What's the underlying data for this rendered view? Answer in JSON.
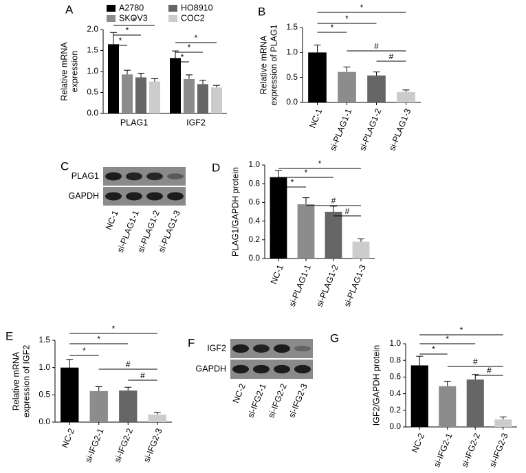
{
  "chart_data": [
    {
      "type": "grouped_bar",
      "panel": "A",
      "ylabel": [
        "Relative mRNA",
        "expression"
      ],
      "categories": [
        "PLAG1",
        "IGF2"
      ],
      "series": [
        {
          "name": "A2780",
          "color": "#000000",
          "values": [
            1.65,
            1.32
          ],
          "errors": [
            0.28,
            0.17
          ]
        },
        {
          "name": "SKOV3",
          "color": "#8c8c8c",
          "values": [
            0.93,
            0.82
          ],
          "errors": [
            0.1,
            0.1
          ]
        },
        {
          "name": "HO8910",
          "color": "#666666",
          "values": [
            0.86,
            0.7
          ],
          "errors": [
            0.1,
            0.09
          ]
        },
        {
          "name": "COC2",
          "color": "#cccccc",
          "values": [
            0.76,
            0.62
          ],
          "errors": [
            0.07,
            0.05
          ]
        }
      ],
      "ylim": [
        0,
        2
      ],
      "yticks": [
        {
          "value": 0,
          "label": "0.0"
        },
        0.5,
        {
          "value": 1,
          "label": "1.0"
        },
        1.5,
        {
          "value": 2,
          "label": "2.0"
        }
      ],
      "annotations": [
        "*",
        "*",
        "*",
        "*",
        "*",
        "*"
      ]
    },
    {
      "type": "bar",
      "panel": "B",
      "ylabel": [
        "Relative mRNA",
        "expression of PLAG1"
      ],
      "categories": [
        "NC-1",
        "si-PLAG1-1",
        "si-PLAG1-2",
        "si-PLAG1-3"
      ],
      "values": [
        1.0,
        0.61,
        0.54,
        0.21
      ],
      "errors": [
        0.15,
        0.1,
        0.07,
        0.04
      ],
      "colors": [
        "#000000",
        "#8c8c8c",
        "#666666",
        "#cccccc"
      ],
      "ylim": [
        0,
        1.5
      ],
      "yticks": [
        {
          "value": 0,
          "label": "0.0"
        },
        0.5,
        {
          "value": 1,
          "label": "1.0"
        },
        1.5
      ],
      "annotations": [
        "*",
        "*",
        "*",
        "#",
        "#"
      ]
    },
    {
      "type": "blot",
      "panel": "C",
      "rows": [
        "PLAG1",
        "GAPDH"
      ],
      "lanes": [
        "NC-1",
        "si-PLAG1-1",
        "si-PLAG1-2",
        "si-PLAG1-3"
      ]
    },
    {
      "type": "bar",
      "panel": "D",
      "ylabel": [
        "PLAG1/GAPDH protein"
      ],
      "categories": [
        "NC-1",
        "si-PLAG1-1",
        "si-PLAG1-2",
        "si-PLAG1-3"
      ],
      "values": [
        0.87,
        0.58,
        0.5,
        0.18
      ],
      "errors": [
        0.07,
        0.07,
        0.06,
        0.03
      ],
      "colors": [
        "#000000",
        "#8c8c8c",
        "#666666",
        "#cccccc"
      ],
      "ylim": [
        0,
        1
      ],
      "yticks": [
        {
          "value": 0,
          "label": "0.0"
        },
        0.2,
        0.4,
        0.6,
        0.8,
        {
          "value": 1,
          "label": "1.0"
        }
      ],
      "annotations": [
        "*",
        "*",
        "*",
        "#",
        "#"
      ]
    },
    {
      "type": "bar",
      "panel": "E",
      "ylabel": [
        "Relative mRNA",
        "expression of IGF2"
      ],
      "categories": [
        "NC-2",
        "si-IFG2-1",
        "si-IFG2-2",
        "si-IFG2-3"
      ],
      "values": [
        1.0,
        0.57,
        0.58,
        0.14
      ],
      "errors": [
        0.15,
        0.08,
        0.06,
        0.04
      ],
      "colors": [
        "#000000",
        "#8c8c8c",
        "#666666",
        "#cccccc"
      ],
      "ylim": [
        0,
        1.5
      ],
      "yticks": [
        {
          "value": 0,
          "label": "0.0"
        },
        0.5,
        {
          "value": 1,
          "label": "1.0"
        },
        1.5
      ],
      "annotations": [
        "*",
        "*",
        "*",
        "#",
        "#"
      ]
    },
    {
      "type": "blot",
      "panel": "F",
      "rows": [
        "IGF2",
        "GAPDH"
      ],
      "lanes": [
        "NC-2",
        "si-IFG2-1",
        "si-IFG2-2",
        "si-IFG2-3"
      ]
    },
    {
      "type": "bar",
      "panel": "G",
      "ylabel": [
        "IGF2/GAPDH protein"
      ],
      "categories": [
        "NC-2",
        "si-IFG2-1",
        "si-IFG2-2",
        "si-IFG2-3"
      ],
      "values": [
        0.74,
        0.49,
        0.57,
        0.09
      ],
      "errors": [
        0.11,
        0.06,
        0.06,
        0.03
      ],
      "colors": [
        "#000000",
        "#8c8c8c",
        "#666666",
        "#cccccc"
      ],
      "ylim": [
        0,
        1
      ],
      "yticks": [
        {
          "value": 0,
          "label": "0.0"
        },
        0.2,
        0.4,
        0.6,
        0.8,
        {
          "value": 1,
          "label": "1.0"
        }
      ],
      "annotations": [
        "*",
        "*",
        "*",
        "#",
        "#"
      ]
    }
  ]
}
